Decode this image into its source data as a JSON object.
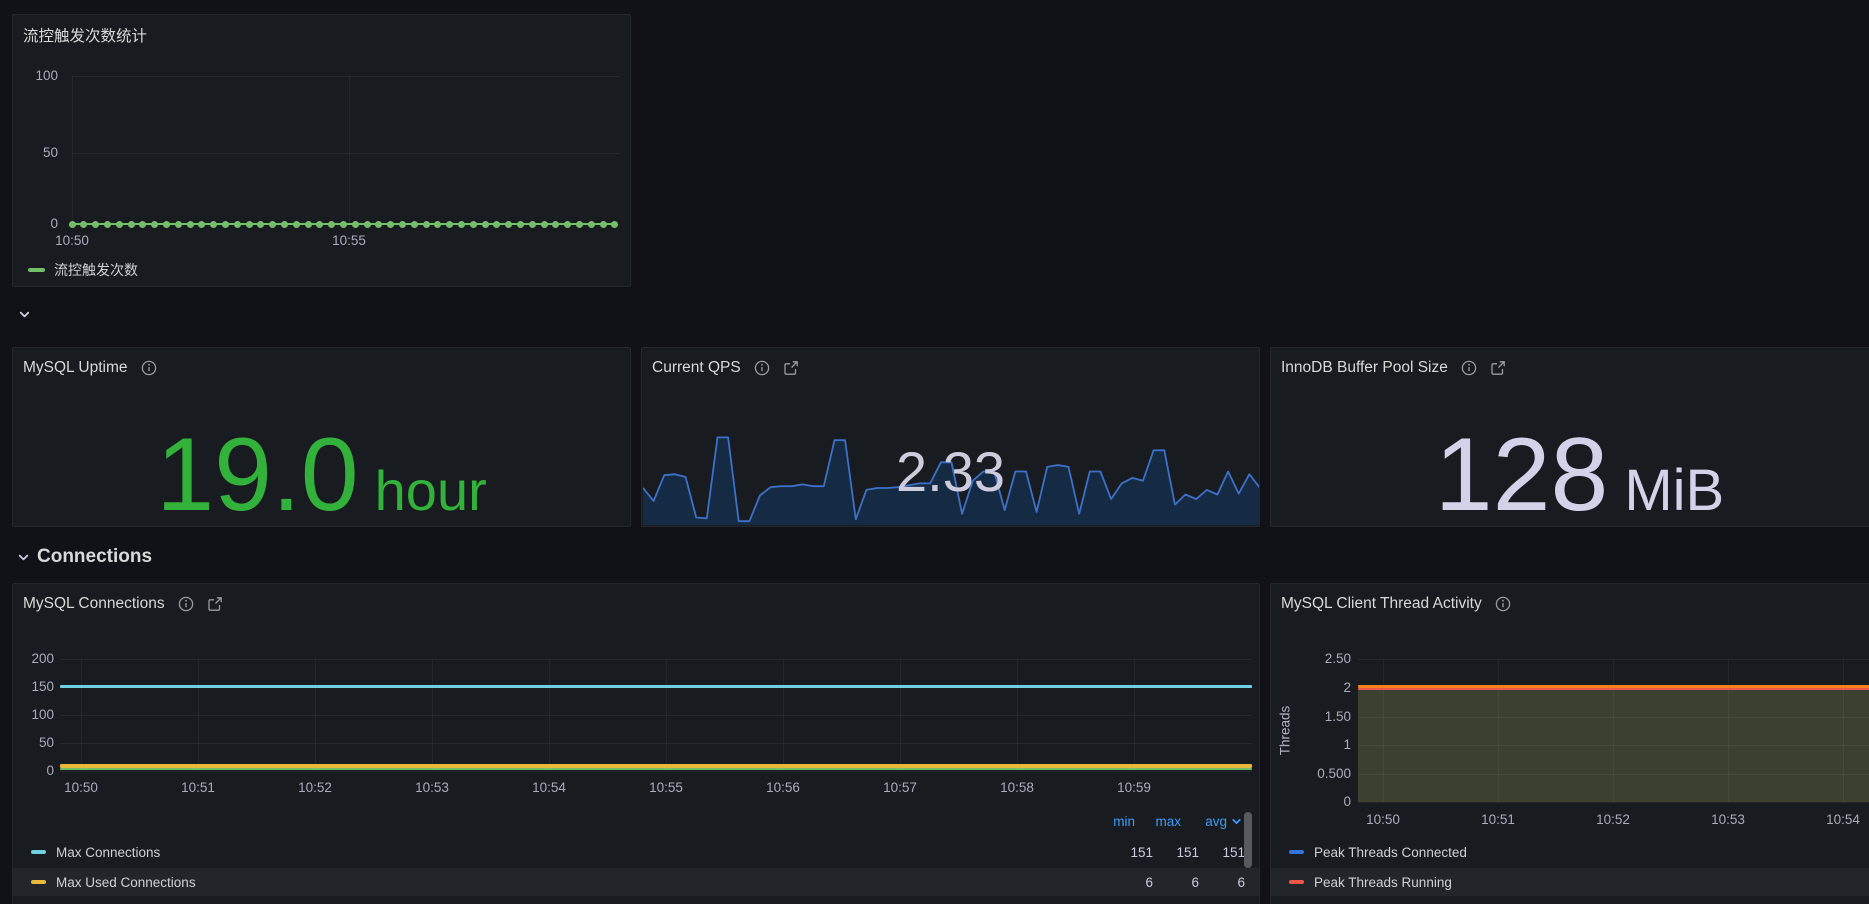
{
  "colors": {
    "page_bg": "#111217",
    "panel_bg": "#181b1f",
    "green_series": "#73bf69",
    "stat_green": "#32b23a",
    "cyan_series": "#6ed0e0",
    "yellow_series": "#eab839",
    "blue_series": "#3274d9",
    "red_series": "#ee564a",
    "qps_stroke": "#3d71c9",
    "qps_fill": "#152a43",
    "thread_area_fill": "#3c402e",
    "thread_top_line": "#f5831d",
    "legend_sort_blue": "#3f9cf5"
  },
  "rows": {
    "collapsed_row": {
      "chevron": "chevron-down"
    },
    "connections": {
      "label": "Connections"
    }
  },
  "panels": {
    "flow_stats": {
      "title": "流控触发次数统计",
      "legend": {
        "label": "流控触发次数",
        "color": "#73bf69"
      },
      "chart_data": {
        "type": "line",
        "title": "流控触发次数统计",
        "yticks": [
          "100",
          "50",
          "0"
        ],
        "ylim": [
          0,
          100
        ],
        "xticks": [
          "10:50",
          "10:55"
        ],
        "grid": true,
        "series": [
          {
            "name": "流控触发次数",
            "color": "#73bf69",
            "constant_value": 0,
            "point_count": 47,
            "points_style": "dots"
          }
        ]
      }
    },
    "uptime": {
      "title": "MySQL Uptime",
      "value": "19.0",
      "unit": "hour",
      "value_color": "#32b23a"
    },
    "qps": {
      "title": "Current QPS",
      "value": "2.33",
      "chart_data": {
        "type": "area",
        "stroke": "#3d71c9",
        "fill": "#152a43",
        "values_normalized": [
          0.38,
          0.24,
          0.52,
          0.53,
          0.5,
          0.06,
          0.05,
          0.93,
          0.93,
          0.02,
          0.02,
          0.3,
          0.39,
          0.4,
          0.4,
          0.42,
          0.4,
          0.4,
          0.9,
          0.9,
          0.04,
          0.36,
          0.38,
          0.38,
          0.39,
          0.41,
          0.43,
          0.43,
          0.66,
          0.66,
          0.1,
          0.46,
          0.56,
          0.56,
          0.14,
          0.56,
          0.56,
          0.12,
          0.61,
          0.63,
          0.61,
          0.1,
          0.56,
          0.56,
          0.26,
          0.43,
          0.49,
          0.46,
          0.79,
          0.79,
          0.2,
          0.31,
          0.26,
          0.36,
          0.31,
          0.56,
          0.32,
          0.53,
          0.38
        ]
      }
    },
    "buffer_pool": {
      "title": "InnoDB Buffer Pool Size",
      "value": "128",
      "unit": "MiB",
      "value_color": "#d2d3e8"
    },
    "connections": {
      "title": "MySQL Connections",
      "legend_header": {
        "min": "min",
        "max": "max",
        "avg": "avg"
      },
      "chart_data": {
        "type": "line",
        "yticks": [
          "200",
          "150",
          "100",
          "50",
          "0"
        ],
        "ylim": [
          0,
          200
        ],
        "xticks": [
          "10:50",
          "10:51",
          "10:52",
          "10:53",
          "10:54",
          "10:55",
          "10:56",
          "10:57",
          "10:58",
          "10:59"
        ],
        "grid": true,
        "baseline_accent": "#73bf69",
        "series": [
          {
            "name": "Max Connections",
            "color": "#6ed0e0",
            "constant_value": 151,
            "min": "151",
            "max": "151",
            "avg": "151"
          },
          {
            "name": "Max Used Connections",
            "color": "#eab839",
            "constant_value": 6,
            "min": "6",
            "max": "6",
            "avg": "6"
          }
        ]
      }
    },
    "threads": {
      "title": "MySQL Client Thread Activity",
      "ylabel": "Threads",
      "chart_data": {
        "type": "line",
        "yticks": [
          "2.50",
          "2",
          "1.50",
          "1",
          "0.500",
          "0"
        ],
        "ylim": [
          0,
          2.5
        ],
        "xticks": [
          "10:50",
          "10:51",
          "10:52",
          "10:53",
          "10:54"
        ],
        "grid": true,
        "area_fill": "#3c402e",
        "top_line_color": "#f5831d",
        "series": [
          {
            "name": "Peak Threads Connected",
            "color": "#3274d9",
            "constant_value": 2
          },
          {
            "name": "Peak Threads Running",
            "color": "#ee564a",
            "constant_value": 2
          }
        ]
      }
    }
  }
}
